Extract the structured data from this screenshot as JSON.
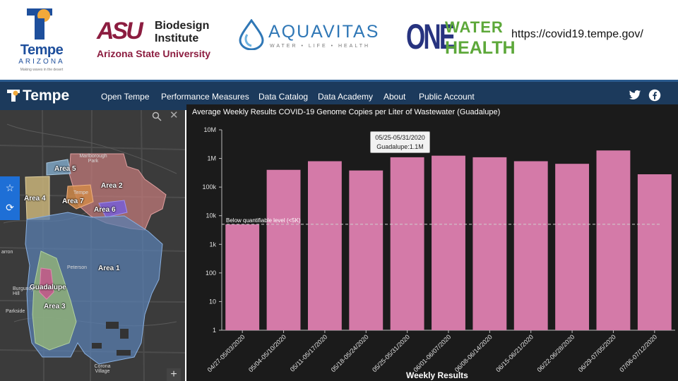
{
  "logos": {
    "tempe": {
      "name": "Tempe",
      "state": "ARIZONA",
      "tagline": "Making waves in the desert"
    },
    "asu": {
      "mark": "ASU",
      "line1": "Biodesign",
      "line2": "Institute",
      "line3": "Arizona State University"
    },
    "aquavitas": {
      "name": "AQUAVITAS",
      "tagline": "WATER • LIFE • HEALTH"
    },
    "onewaterhealth": {
      "one": "ONE",
      "water": "WATER",
      "health": "HEALTH"
    },
    "url": "https://covid19.tempe.gov/"
  },
  "nav": {
    "logo": "Tempe",
    "items": [
      "Open Tempe",
      "Performance Measures",
      "Data Catalog",
      "Data Academy",
      "About",
      "Public Account"
    ],
    "social": [
      "twitter-icon",
      "facebook-icon"
    ]
  },
  "map": {
    "areas": [
      "Area 5",
      "Area 2",
      "Area 4",
      "Area 7",
      "Area 6",
      "Area 1",
      "Guadalupe",
      "Area 3"
    ],
    "places": [
      "Marlborough Park",
      "Tempe",
      "Peterson",
      "Burgundy Hill",
      "Parkside",
      "Corona Village",
      "arron"
    ],
    "colors": {
      "area1": "#5a7fb0",
      "area2": "#c07a7a",
      "area3": "#8fb07a",
      "area4": "#c9b47a",
      "area5": "#7fa6c4",
      "area6": "#7a5fd0",
      "area7": "#d08a4a",
      "guadalupe": "#c05a8a"
    }
  },
  "chart_data": {
    "type": "bar",
    "title": "Average Weekly Results COVID-19 Genome Copies per Liter of Wastewater (Guadalupe)",
    "xlabel": "Weekly Results",
    "ylabel": "",
    "yscale": "log",
    "ylim": [
      1,
      10000000
    ],
    "ytick_labels": [
      "1",
      "10",
      "100",
      "1k",
      "10k",
      "100k",
      "1M",
      "10M"
    ],
    "categories": [
      "04/27-05/03/2020",
      "05/04-05/10/2020",
      "05/11-05/17/2020",
      "05/18-05/24/2020",
      "05/25-05/31/2020",
      "06/01-06/07/2020",
      "06/08-06/14/2020",
      "06/15-06/21/2020",
      "06/22-06/28/2020",
      "06/29-07/05/2020",
      "07/06-07/12/2020"
    ],
    "series": [
      {
        "name": "Guadalupe",
        "values": [
          5000,
          400000,
          800000,
          380000,
          1100000,
          1250000,
          1100000,
          800000,
          650000,
          1900000,
          280000
        ]
      }
    ],
    "bar_color": "#d47aa8",
    "reference_line": {
      "value": 5000,
      "label": "Below quantifiable level (<5K)"
    },
    "tooltip": {
      "title": "05/25-05/31/2020",
      "text": "Guadalupe:1.1M"
    },
    "grid": false,
    "legend": "none"
  }
}
